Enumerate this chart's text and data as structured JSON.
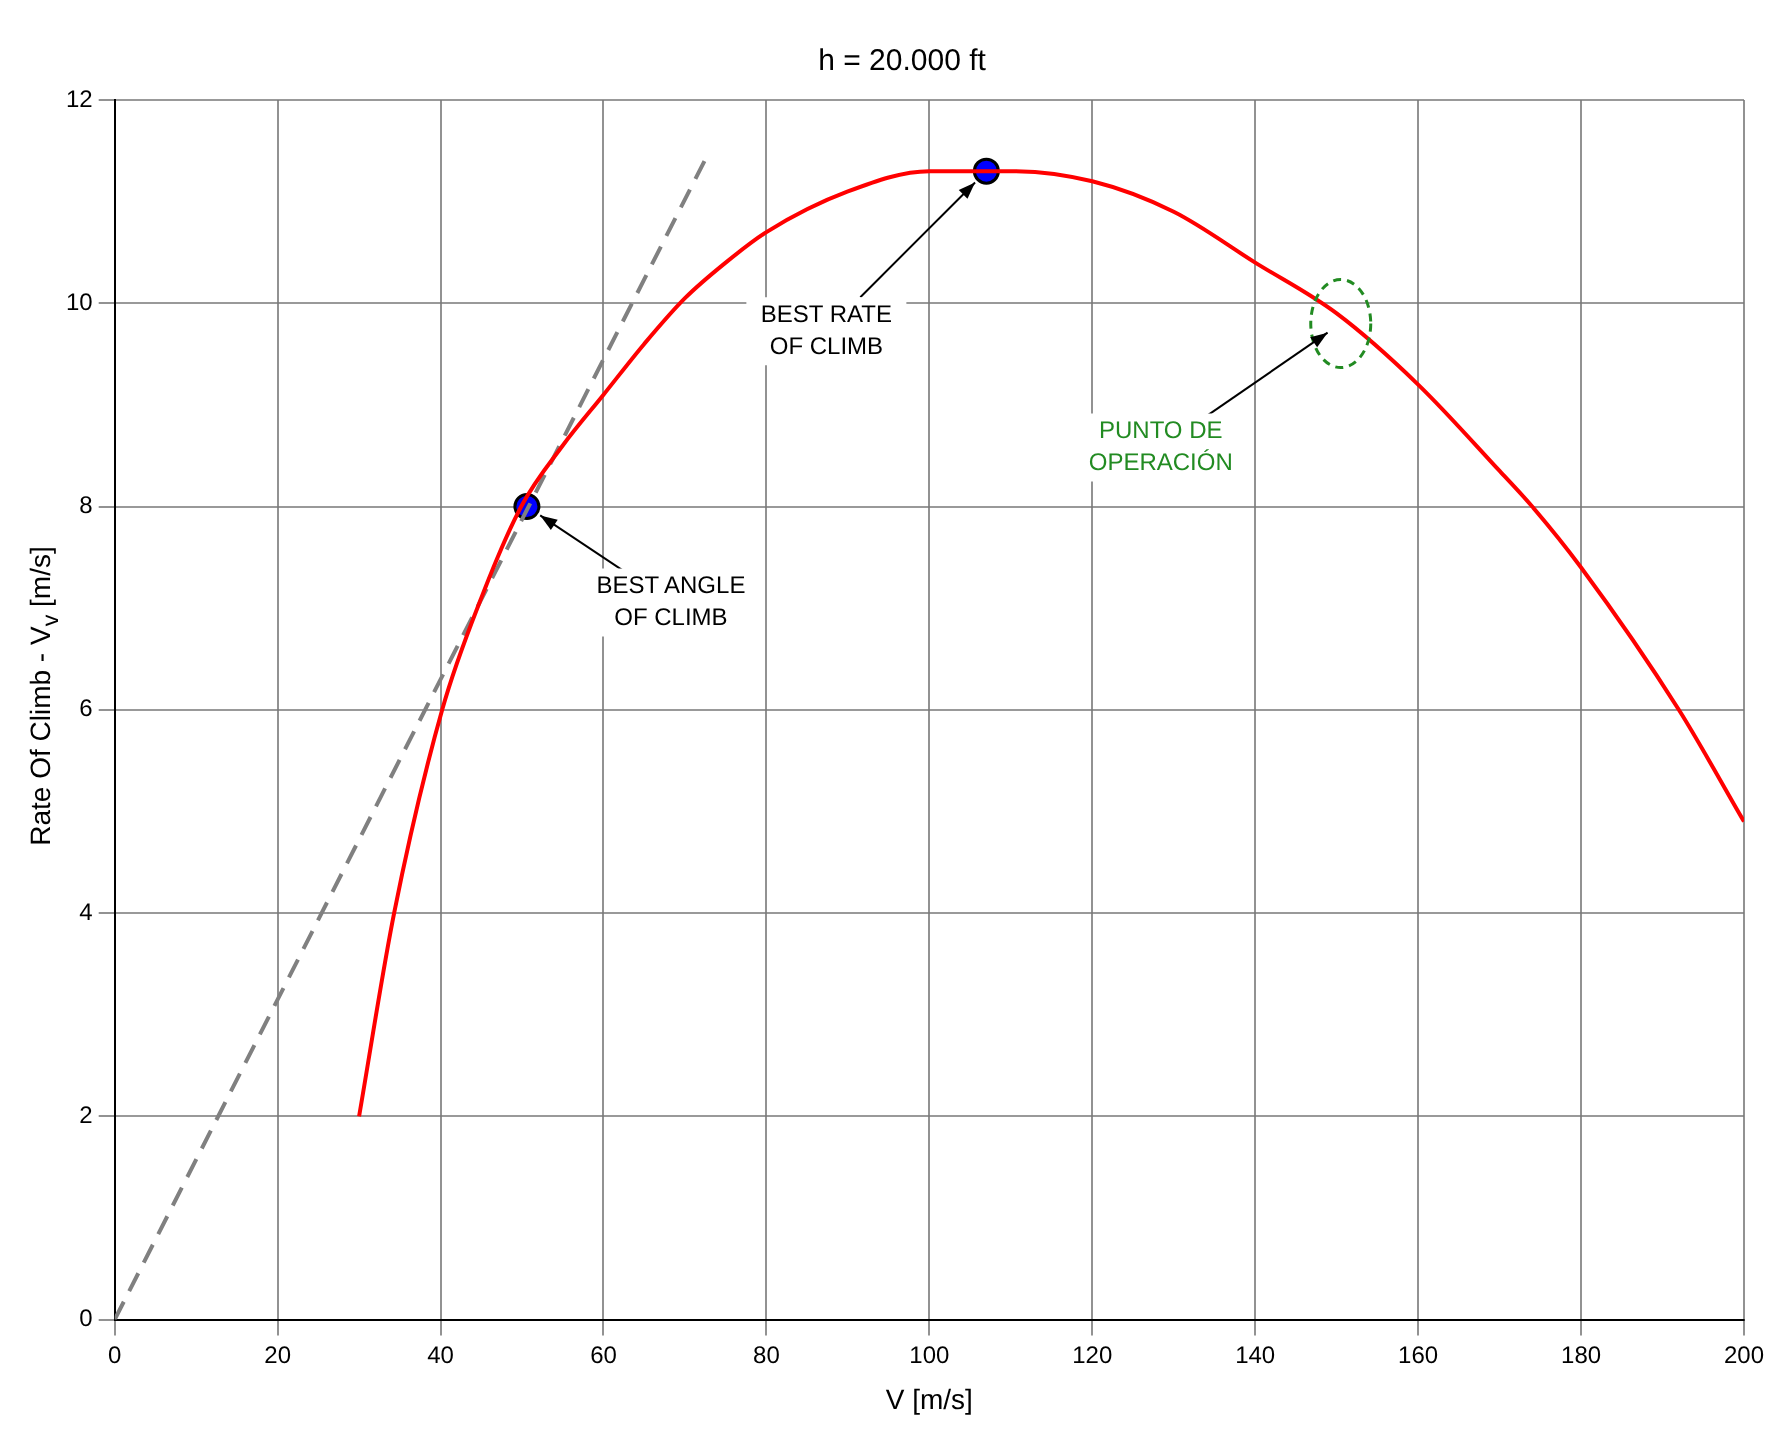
{
  "chart_data": {
    "type": "line",
    "title": "h = 20.000 ft",
    "xlabel": "V [m/s]",
    "ylabel": "Rate Of Climb - V$_{v}$ [m/s]",
    "xlim": [
      0,
      200
    ],
    "xticks": [
      0,
      20,
      40,
      60,
      80,
      100,
      120,
      140,
      160,
      180,
      200
    ],
    "ylim": [
      0,
      12
    ],
    "yticks": [
      0,
      2,
      4,
      6,
      8,
      10,
      12
    ],
    "grid": true,
    "legend": false,
    "series": [
      {
        "type": "line",
        "color": "#ff0000",
        "line_style": "solid",
        "marker": "none",
        "x": [
          30,
          34.3,
          40.2,
          45,
          49.9,
          55,
          60,
          65,
          70,
          75,
          80,
          90,
          100,
          107,
          110,
          120,
          130,
          140,
          150,
          160,
          170,
          174,
          180,
          192,
          200
        ],
        "values": [
          2,
          4,
          6,
          7.1,
          8,
          8.6,
          9.1,
          9.6,
          10.05,
          10.4,
          10.7,
          11.1,
          11.3,
          11.3,
          11.3,
          11.2,
          10.9,
          10.4,
          9.9,
          9.2,
          8.35,
          8,
          7.4,
          6,
          4.9
        ]
      },
      {
        "type": "line",
        "color": "#808080",
        "line_style": "dashed",
        "marker": "none",
        "x": [
          0,
          72.4
        ],
        "values": [
          0,
          11.4
        ]
      },
      {
        "type": "scatter",
        "color": "#0000ff",
        "marker": "circle",
        "x": [
          50.6,
          107
        ],
        "values": [
          8,
          11.3
        ]
      }
    ],
    "annotations": [
      {
        "text": "BEST ANGLE\nOF CLIMB",
        "x": 50.6,
        "y": 8
      },
      {
        "text": "BEST RATE\nOF CLIMB",
        "x": 107,
        "y": 11.3
      },
      {
        "text": "PUNTO DE\nOPERACIÓN",
        "x": 150.5,
        "y": 9.8
      }
    ]
  }
}
